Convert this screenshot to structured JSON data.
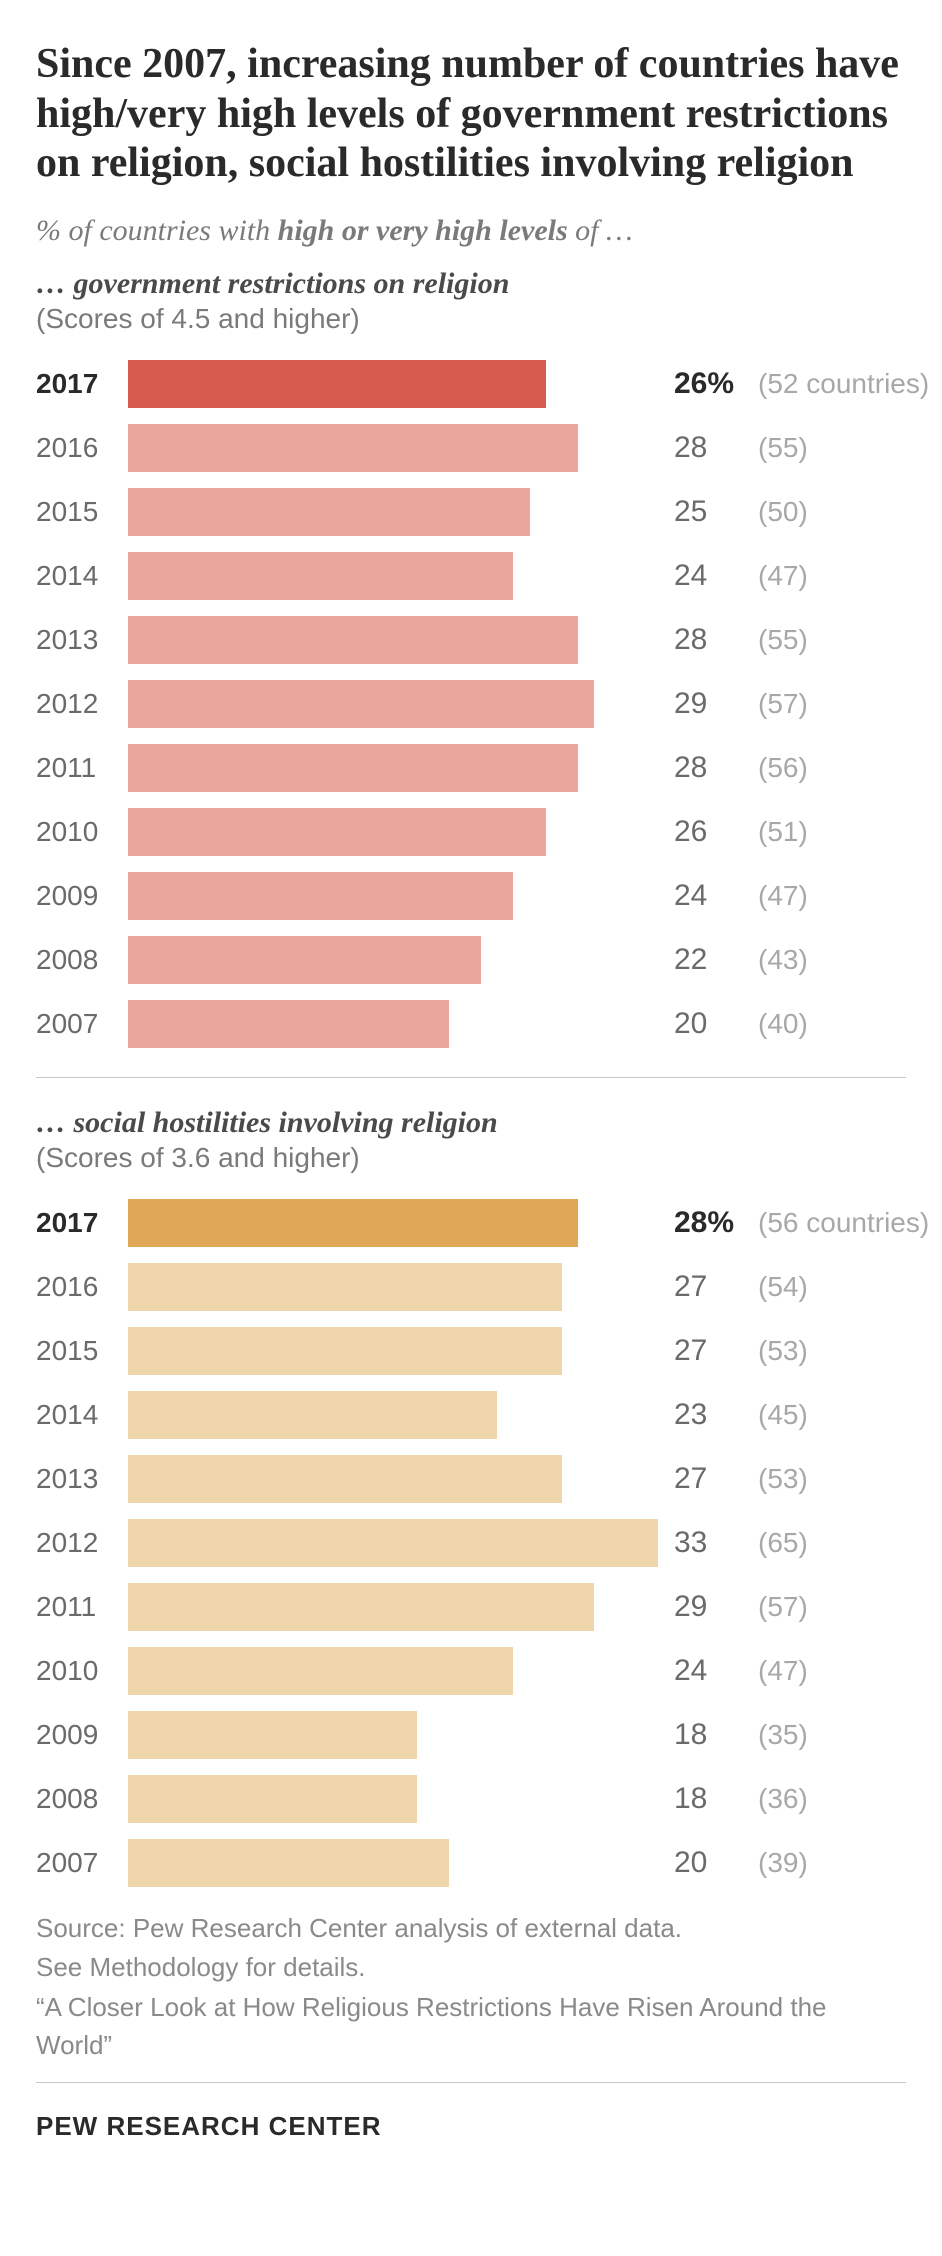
{
  "headline": "Since 2007, increasing number of countries have high/very high levels of government restrictions on religion, social hostilities involving religion",
  "subhead_prefix": "% of countries with ",
  "subhead_bold": "high or very high levels",
  "subhead_suffix": " of …",
  "chart1": {
    "label": "… government restrictions on religion",
    "note": "(Scores of 4.5 and higher)",
    "highlight_color": "#d75a4f",
    "bar_color": "#e9a79c",
    "max_value": 33,
    "rows": [
      {
        "year": "2017",
        "value": 26,
        "value_label": "26%",
        "count": "(52 countries)",
        "hl": true
      },
      {
        "year": "2016",
        "value": 28,
        "value_label": "28",
        "count": "(55)"
      },
      {
        "year": "2015",
        "value": 25,
        "value_label": "25",
        "count": "(50)"
      },
      {
        "year": "2014",
        "value": 24,
        "value_label": "24",
        "count": "(47)"
      },
      {
        "year": "2013",
        "value": 28,
        "value_label": "28",
        "count": "(55)"
      },
      {
        "year": "2012",
        "value": 29,
        "value_label": "29",
        "count": "(57)"
      },
      {
        "year": "2011",
        "value": 28,
        "value_label": "28",
        "count": "(56)"
      },
      {
        "year": "2010",
        "value": 26,
        "value_label": "26",
        "count": "(51)"
      },
      {
        "year": "2009",
        "value": 24,
        "value_label": "24",
        "count": "(47)"
      },
      {
        "year": "2008",
        "value": 22,
        "value_label": "22",
        "count": "(43)"
      },
      {
        "year": "2007",
        "value": 20,
        "value_label": "20",
        "count": "(40)"
      }
    ]
  },
  "chart2": {
    "label": "… social hostilities involving religion",
    "note": "(Scores of 3.6 and higher)",
    "highlight_color": "#e0a758",
    "bar_color": "#f0d6ab",
    "max_value": 33,
    "rows": [
      {
        "year": "2017",
        "value": 28,
        "value_label": "28%",
        "count": "(56 countries)",
        "hl": true
      },
      {
        "year": "2016",
        "value": 27,
        "value_label": "27",
        "count": "(54)"
      },
      {
        "year": "2015",
        "value": 27,
        "value_label": "27",
        "count": "(53)"
      },
      {
        "year": "2014",
        "value": 23,
        "value_label": "23",
        "count": "(45)"
      },
      {
        "year": "2013",
        "value": 27,
        "value_label": "27",
        "count": "(53)"
      },
      {
        "year": "2012",
        "value": 33,
        "value_label": "33",
        "count": "(65)"
      },
      {
        "year": "2011",
        "value": 29,
        "value_label": "29",
        "count": "(57)"
      },
      {
        "year": "2010",
        "value": 24,
        "value_label": "24",
        "count": "(47)"
      },
      {
        "year": "2009",
        "value": 18,
        "value_label": "18",
        "count": "(35)"
      },
      {
        "year": "2008",
        "value": 18,
        "value_label": "18",
        "count": "(36)"
      },
      {
        "year": "2007",
        "value": 20,
        "value_label": "20",
        "count": "(39)"
      }
    ]
  },
  "footnotes": [
    "Source: Pew Research Center analysis of external data.",
    "See Methodology for details.",
    "“A Closer Look at How Religious Restrictions Have Risen Around the World”"
  ],
  "logo": "PEW RESEARCH CENTER"
}
